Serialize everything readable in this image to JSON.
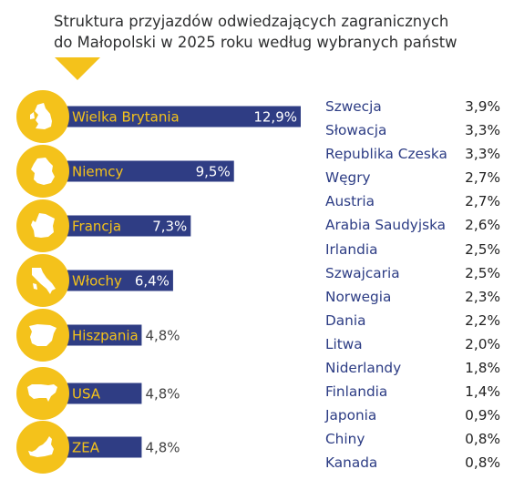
{
  "colors": {
    "bar": "#2f3d84",
    "circle": "#f4c21b",
    "label": "#f4c21b",
    "value": "#ffffff",
    "icon": "#ffffff",
    "table_country": "#2c3c84",
    "table_value": "#222222"
  },
  "chart_data": [
    {
      "type": "bar",
      "orientation": "horizontal",
      "title_lines": [
        "Struktura przyjazdów odwiedzających zagranicznych",
        "do Małopolski w 2025 roku według wybranych państw"
      ],
      "unit": "%",
      "categories": [
        "Wielka Brytania",
        "Niemcy",
        "Francja",
        "Włochy",
        "Hiszpania",
        "USA",
        "ZEA"
      ],
      "values": [
        12.9,
        9.5,
        7.3,
        6.4,
        4.8,
        4.8,
        4.8
      ],
      "value_labels": [
        "12,9%",
        "9,5%",
        "7,3%",
        "6,4%",
        "4,8%",
        "4,8%",
        "4,8%"
      ],
      "icons": [
        "uk-map-icon",
        "germany-map-icon",
        "france-map-icon",
        "italy-map-icon",
        "spain-map-icon",
        "usa-map-icon",
        "uae-map-icon"
      ]
    },
    {
      "type": "table",
      "columns": [
        "country",
        "share"
      ],
      "rows": [
        [
          "Szwecja",
          "3,9%"
        ],
        [
          "Słowacja",
          "3,3%"
        ],
        [
          "Republika Czeska",
          "3,3%"
        ],
        [
          "Węgry",
          "2,7%"
        ],
        [
          "Austria",
          "2,7%"
        ],
        [
          "Arabia Saudyjska",
          "2,6%"
        ],
        [
          "Irlandia",
          "2,5%"
        ],
        [
          "Szwajcaria",
          "2,5%"
        ],
        [
          "Norwegia",
          "2,3%"
        ],
        [
          "Dania",
          "2,2%"
        ],
        [
          "Litwa",
          "2,0%"
        ],
        [
          "Niderlandy",
          "1,8%"
        ],
        [
          "Finlandia",
          "1,4%"
        ],
        [
          "Japonia",
          "0,9%"
        ],
        [
          "Chiny",
          "0,8%"
        ],
        [
          "Kanada",
          "0,8%"
        ]
      ]
    }
  ]
}
